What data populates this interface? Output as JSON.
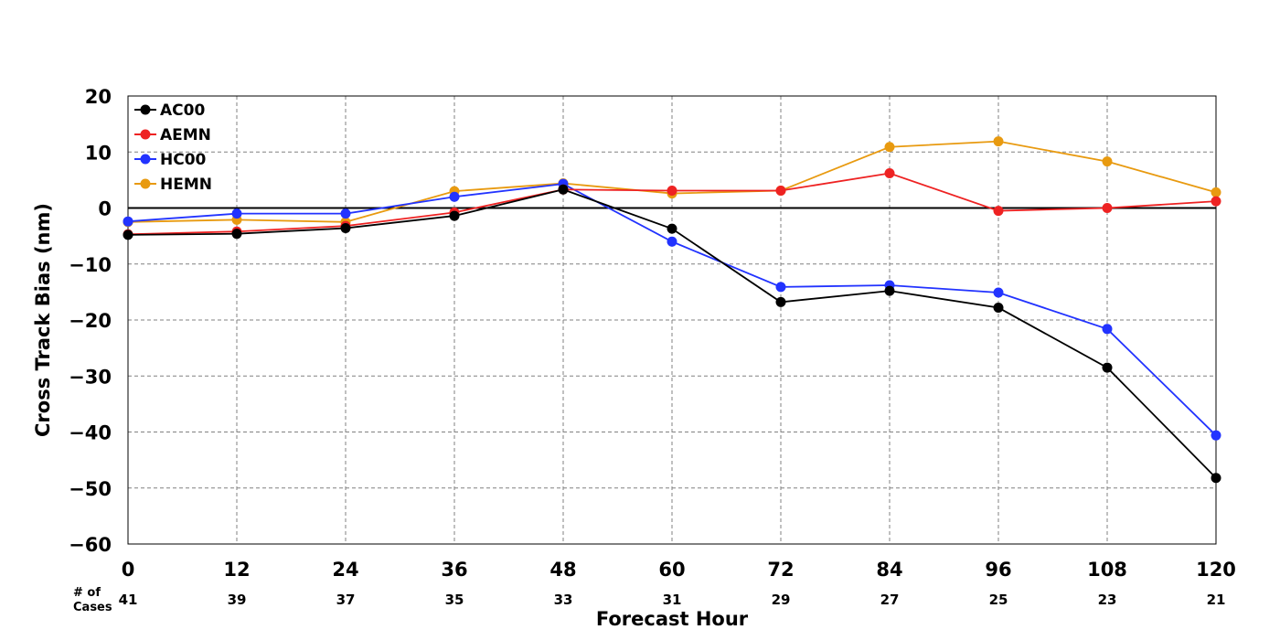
{
  "chart_data": {
    "type": "line",
    "xlabel": "Forecast Hour",
    "ylabel": "Cross Track Bias (nm)",
    "x": [
      0,
      12,
      24,
      36,
      48,
      60,
      72,
      84,
      96,
      108,
      120
    ],
    "xlim": [
      0,
      120
    ],
    "ylim": [
      -60,
      20
    ],
    "yticks": [
      20,
      10,
      0,
      -10,
      -20,
      -30,
      -40,
      -50,
      -60
    ],
    "grid": true,
    "legend_position": "top-left",
    "cases_label": [
      "# of",
      "Cases"
    ],
    "cases": [
      41,
      39,
      37,
      35,
      33,
      31,
      29,
      27,
      25,
      23,
      21
    ],
    "series": [
      {
        "name": "AC00",
        "color": "#000000",
        "values": [
          -4.8,
          -4.6,
          -3.6,
          -1.4,
          3.3,
          -3.7,
          -16.8,
          -14.8,
          -17.8,
          -28.5,
          -48.2
        ]
      },
      {
        "name": "AEMN",
        "color": "#ee2222",
        "values": [
          -4.7,
          -4.2,
          -3.2,
          -0.8,
          3.3,
          3.1,
          3.1,
          6.2,
          -0.5,
          0.0,
          1.2
        ]
      },
      {
        "name": "HC00",
        "color": "#2233ff",
        "values": [
          -2.4,
          -1.0,
          -1.0,
          2.0,
          4.3,
          -6.0,
          -14.1,
          -13.8,
          -15.1,
          -21.6,
          -40.6
        ]
      },
      {
        "name": "HEMN",
        "color": "#e89a10",
        "values": [
          -2.5,
          -2.1,
          -2.5,
          3.0,
          4.4,
          2.6,
          3.1,
          10.9,
          11.9,
          8.3,
          2.8
        ]
      }
    ]
  }
}
